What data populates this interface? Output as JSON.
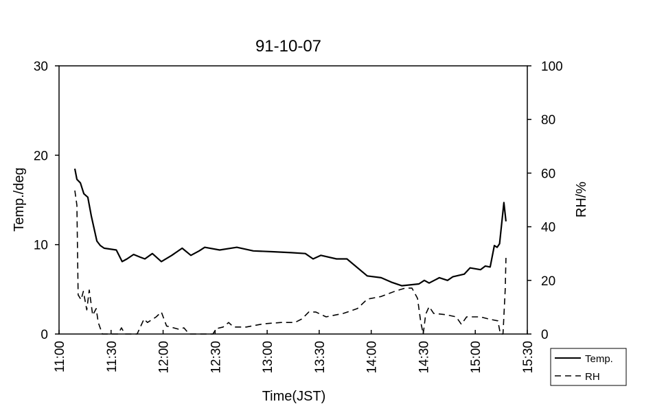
{
  "chart_data": {
    "type": "line",
    "title": "91-10-07",
    "xlabel": "Time(JST)",
    "ylabel": "Temp./deg",
    "y2label": "RH/%",
    "x_unit": "minutes after 11:00",
    "xlim": [
      0,
      270
    ],
    "ylim": [
      0,
      30
    ],
    "y2lim": [
      0,
      100
    ],
    "x_ticks": [
      {
        "value": 0,
        "label": "11:00"
      },
      {
        "value": 30,
        "label": "11:30"
      },
      {
        "value": 60,
        "label": "12:00"
      },
      {
        "value": 90,
        "label": "12:30"
      },
      {
        "value": 120,
        "label": "13:00"
      },
      {
        "value": 150,
        "label": "13:30"
      },
      {
        "value": 180,
        "label": "14:00"
      },
      {
        "value": 210,
        "label": "14:30"
      },
      {
        "value": 240,
        "label": "15:00"
      },
      {
        "value": 270,
        "label": "15:30"
      }
    ],
    "y_ticks": [
      0,
      10,
      20,
      30
    ],
    "y2_ticks": [
      0,
      20,
      40,
      60,
      80,
      100
    ],
    "grid": false,
    "legend_position": "bottom-right outside",
    "series": [
      {
        "name": "Temp.",
        "axis": "left",
        "style": "solid",
        "points": [
          [
            9.1,
            18.5
          ],
          [
            10.3,
            17.3
          ],
          [
            12.3,
            16.9
          ],
          [
            14.3,
            15.7
          ],
          [
            16.6,
            15.3
          ],
          [
            18.6,
            13.2
          ],
          [
            21.8,
            10.4
          ],
          [
            23.8,
            9.9
          ],
          [
            26,
            9.6
          ],
          [
            33,
            9.4
          ],
          [
            36.4,
            8.1
          ],
          [
            39.2,
            8.4
          ],
          [
            43,
            8.9
          ],
          [
            46.7,
            8.6
          ],
          [
            49.5,
            8.4
          ],
          [
            53.8,
            9.0
          ],
          [
            59,
            8.1
          ],
          [
            65,
            8.8
          ],
          [
            71,
            9.6
          ],
          [
            76,
            8.8
          ],
          [
            80.8,
            9.3
          ],
          [
            84,
            9.7
          ],
          [
            92.6,
            9.4
          ],
          [
            102.5,
            9.7
          ],
          [
            112,
            9.3
          ],
          [
            124,
            9.2
          ],
          [
            134,
            9.1
          ],
          [
            142,
            9.0
          ],
          [
            146.5,
            8.4
          ],
          [
            151,
            8.8
          ],
          [
            160,
            8.4
          ],
          [
            166,
            8.4
          ],
          [
            177.7,
            6.5
          ],
          [
            185.7,
            6.3
          ],
          [
            191.6,
            5.8
          ],
          [
            197.6,
            5.4
          ],
          [
            207.5,
            5.6
          ],
          [
            210.6,
            6.0
          ],
          [
            213.4,
            5.7
          ],
          [
            219.3,
            6.3
          ],
          [
            224,
            6.0
          ],
          [
            227,
            6.4
          ],
          [
            233.6,
            6.7
          ],
          [
            237,
            7.4
          ],
          [
            243,
            7.2
          ],
          [
            245.8,
            7.6
          ],
          [
            248.6,
            7.5
          ],
          [
            251,
            9.9
          ],
          [
            252.6,
            9.7
          ],
          [
            254,
            10.1
          ],
          [
            256.5,
            14.7
          ],
          [
            257.7,
            12.6
          ]
        ]
      },
      {
        "name": "RH",
        "axis": "right",
        "style": "dashed",
        "points": [
          [
            9.1,
            53.5
          ],
          [
            10.3,
            48
          ],
          [
            11,
            14.6
          ],
          [
            12.7,
            12.8
          ],
          [
            14,
            15.9
          ],
          [
            16,
            9
          ],
          [
            17.4,
            16.4
          ],
          [
            19.4,
            7
          ],
          [
            21.4,
            9.5
          ],
          [
            22.6,
            4.3
          ],
          [
            25,
            0
          ],
          [
            34,
            0
          ],
          [
            36,
            2.3
          ],
          [
            38,
            0
          ],
          [
            45,
            0
          ],
          [
            49,
            5.6
          ],
          [
            51,
            4.3
          ],
          [
            56,
            6.4
          ],
          [
            59,
            8.2
          ],
          [
            62,
            3
          ],
          [
            69,
            1.8
          ],
          [
            72,
            2.3
          ],
          [
            75,
            0
          ],
          [
            88.7,
            0
          ],
          [
            90.7,
            2
          ],
          [
            94.6,
            2.6
          ],
          [
            97.8,
            4.3
          ],
          [
            100.6,
            2.6
          ],
          [
            108,
            2.6
          ],
          [
            118,
            3.8
          ],
          [
            128,
            4.3
          ],
          [
            136,
            4.3
          ],
          [
            140,
            5.6
          ],
          [
            144,
            8.2
          ],
          [
            148,
            8.2
          ],
          [
            154,
            6.4
          ],
          [
            164,
            7.7
          ],
          [
            172,
            9.5
          ],
          [
            177.7,
            13
          ],
          [
            185.7,
            14
          ],
          [
            193.5,
            15.9
          ],
          [
            199.5,
            17.1
          ],
          [
            203.5,
            17.1
          ],
          [
            206.7,
            13.3
          ],
          [
            208.6,
            4.3
          ],
          [
            210,
            0
          ],
          [
            211.4,
            7.4
          ],
          [
            213.4,
            10.2
          ],
          [
            216,
            7.7
          ],
          [
            223,
            7.2
          ],
          [
            229,
            6.4
          ],
          [
            232,
            3.6
          ],
          [
            235,
            6.4
          ],
          [
            243,
            6.4
          ],
          [
            247.7,
            5.6
          ],
          [
            253,
            4.9
          ],
          [
            254.5,
            0
          ],
          [
            256,
            0
          ],
          [
            257.3,
            17
          ],
          [
            257.7,
            28.4
          ]
        ]
      }
    ]
  }
}
